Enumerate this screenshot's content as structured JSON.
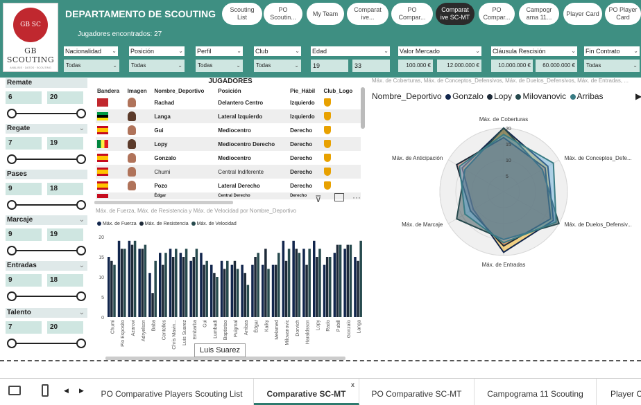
{
  "header": {
    "title": "DEPARTAMENTO DE SCOUTING",
    "found_label": "Jugadores encontrados:",
    "found_count": "27",
    "logo": {
      "text": "GB SC",
      "brand": "GB SCOUTING",
      "sub": "ANÁLISIS · DATOS · SCOUTING"
    },
    "colors": {
      "header_bg": "#3e8f82",
      "filter_bg": "#cfe6e1",
      "active_button": "#2b2b2b"
    }
  },
  "nav_buttons": [
    {
      "label": "Scouting List",
      "active": false
    },
    {
      "label": "PO Scoutin...",
      "active": false
    },
    {
      "label": "My Team",
      "active": false
    },
    {
      "label": "Comparat ive...",
      "active": false
    },
    {
      "label": "PO Compar...",
      "active": false
    },
    {
      "label": "Comparat ive SC-MT",
      "active": true
    },
    {
      "label": "PO Compar...",
      "active": false
    },
    {
      "label": "Campogr ama 11...",
      "active": false
    },
    {
      "label": "Player Card",
      "active": false
    },
    {
      "label": "PO Player Card",
      "active": false
    }
  ],
  "filters": [
    {
      "label": "Nacionalidad",
      "value": "Todas"
    },
    {
      "label": "Posición",
      "value": "Todas"
    },
    {
      "label": "Perfil",
      "value": "Todas"
    },
    {
      "label": "Club",
      "value": "Todas"
    },
    {
      "label": "Edad",
      "min": "19",
      "max": "33"
    },
    {
      "label": "Valor Mercado",
      "min": "100.000 €",
      "max": "12.000.000 €"
    },
    {
      "label": "Cláusula Rescisión",
      "min": "10.000.000 €",
      "max": "60.000.000 €"
    },
    {
      "label": "Fin Contrato",
      "value": "Todas"
    }
  ],
  "sliders": [
    {
      "label": "Remate",
      "min": "6",
      "max": "20"
    },
    {
      "label": "Regate",
      "min": "7",
      "max": "19"
    },
    {
      "label": "Pases",
      "min": "9",
      "max": "18"
    },
    {
      "label": "Marcaje",
      "min": "9",
      "max": "19"
    },
    {
      "label": "Entradas",
      "min": "9",
      "max": "18"
    },
    {
      "label": "Talento",
      "min": "7",
      "max": "20"
    }
  ],
  "table": {
    "title": "JUGADORES",
    "columns": [
      "Bandera",
      "Imagen",
      "Nombre_Deportivo",
      "Posición",
      "Pie_Hábil",
      "Club_Logo"
    ],
    "rows": [
      {
        "flag": "morocco-flag",
        "name": "Rachad",
        "position": "Delantero Centro",
        "foot": "Izquierdo"
      },
      {
        "flag": "mozambique-flag",
        "name": "Langa",
        "position": "Lateral Izquierdo",
        "foot": "Izquierdo"
      },
      {
        "flag": "spain-flag",
        "name": "Gui",
        "position": "Mediocentro",
        "foot": "Derecho"
      },
      {
        "flag": "senegal-flag",
        "name": "Lopy",
        "position": "Mediocentro Derecho",
        "foot": "Derecho"
      },
      {
        "flag": "spain-flag",
        "name": "Gonzalo",
        "position": "Mediocentro",
        "foot": "Derecho"
      },
      {
        "flag": "spain-flag",
        "name": "Chumi",
        "position": "Central Indiferente",
        "foot": "Derecho"
      },
      {
        "flag": "spain-flag",
        "name": "Pozo",
        "position": "Lateral Derecho",
        "foot": "Derecho"
      },
      {
        "flag": "spain-flag",
        "name": "Édgar",
        "position": "Central Derecho",
        "foot": "Derecho"
      }
    ]
  },
  "bar_chart": {
    "title": "Máx. de Fuerza, Máx. de Resistencia y Máx. de Velocidad por Nombre_Deportivo",
    "tooltip": "Luis Suarez"
  },
  "chart_data": [
    {
      "type": "bar",
      "title": "Máx. de Fuerza, Máx. de Resistencia y Máx. de Velocidad por Nombre_Deportivo",
      "ylim": [
        0,
        20
      ],
      "yticks": [
        0,
        5,
        10,
        15,
        20
      ],
      "categories": [
        "Chumi",
        "Pio Esposito",
        "Azarovi",
        "Adryelson",
        "Baba",
        "Centelles",
        "Chris Mavin...",
        "Luis Suarez",
        "Embarba",
        "Gui",
        "Lumbadi",
        "Baptistao",
        "Puigmal",
        "Arribas",
        "Édgar",
        "Kaiky",
        "Melamed",
        "Milovanovic",
        "Dorvich",
        "Haraldsson",
        "Lopy",
        "Rado",
        "Pubill",
        "Gonzalo",
        "Langa"
      ],
      "tick_labels": [
        "Chumi",
        "Pio Esposito",
        "Azarovi",
        "Adryelson",
        "Baba",
        "Centelles",
        "Chris Mavin...",
        "Luis Suarez",
        "Embarba",
        "Gui",
        "Lumbadi",
        "Baptistao",
        "Puigmal",
        "Arribas",
        "Édgar",
        "Kaiky",
        "Melamed",
        "Milovanovic",
        "Dorvich",
        "Haraldsson",
        "Lopy",
        "Rado",
        "Pubill",
        "Gonzalo",
        "Langa"
      ],
      "series": [
        {
          "name": "Máx. de Fuerza",
          "color": "#12264d",
          "values": [
            15,
            19,
            19,
            17,
            11,
            16,
            17,
            16,
            14,
            16,
            13,
            14,
            13,
            13,
            13,
            13,
            13,
            19,
            19,
            17,
            19,
            13,
            16,
            17,
            15
          ]
        },
        {
          "name": "Máx. de Resistencia",
          "color": "#1e2a38",
          "values": [
            14,
            17,
            18,
            17,
            6,
            13,
            15,
            15,
            15,
            13,
            11,
            12,
            14,
            11,
            15,
            17,
            13,
            14,
            17,
            13,
            15,
            15,
            18,
            18,
            14
          ]
        },
        {
          "name": "Máx. de Velocidad",
          "color": "#274a4e",
          "values": [
            13,
            17,
            19,
            18,
            14,
            16,
            17,
            17,
            17,
            14,
            10,
            14,
            12,
            8,
            16,
            12,
            16,
            17,
            16,
            17,
            17,
            15,
            18,
            18,
            19
          ]
        }
      ]
    },
    {
      "type": "radar",
      "title": "Máx. de Coberturas, Máx. de Conceptos_Defensivos, Máx. de Duelos_Defensivos, Máx. de Entradas, ...",
      "legend_title": "Nombre_Deportivo",
      "axes": [
        "Máx. de Coberturas",
        "Máx. de Conceptos_Defe...",
        "Máx. de Duelos_Defensiv...",
        "Máx. de Entradas",
        "Máx. de Marcaje",
        "Máx. de Anticipación"
      ],
      "rlim": [
        0,
        20
      ],
      "rticks": [
        5,
        10,
        15,
        20
      ],
      "series": [
        {
          "name": "Gonzalo",
          "color": "#12264d",
          "values": [
            20,
            16,
            18,
            19,
            11,
            15
          ]
        },
        {
          "name": "Lopy",
          "color": "#1e2a38",
          "values": [
            17,
            15,
            17,
            17,
            12,
            17
          ]
        },
        {
          "name": "Milovanovic",
          "color": "#274a4e",
          "values": [
            20,
            14,
            20,
            15,
            17,
            14
          ]
        },
        {
          "name": "Arribas",
          "color": "#3a7c84",
          "values": [
            18,
            18,
            19,
            16,
            14,
            16
          ]
        }
      ]
    }
  ],
  "radar": {
    "title": "Máx. de Coberturas, Máx. de Conceptos_Defensivos, Máx. de Duelos_Defensivos, Máx. de Entradas, ...",
    "legend_title": "Nombre_Deportivo",
    "legend": [
      "Gonzalo",
      "Lopy",
      "Milovanovic",
      "Arribas"
    ]
  },
  "tabs": [
    {
      "label": "PO Comparative Players Scouting List",
      "active": false
    },
    {
      "label": "Comparative SC-MT",
      "active": true
    },
    {
      "label": "PO Comparative SC-MT",
      "active": false
    },
    {
      "label": "Campograma 11 Scouting",
      "active": false
    },
    {
      "label": "Player C",
      "active": false
    }
  ],
  "tab_close": "x"
}
